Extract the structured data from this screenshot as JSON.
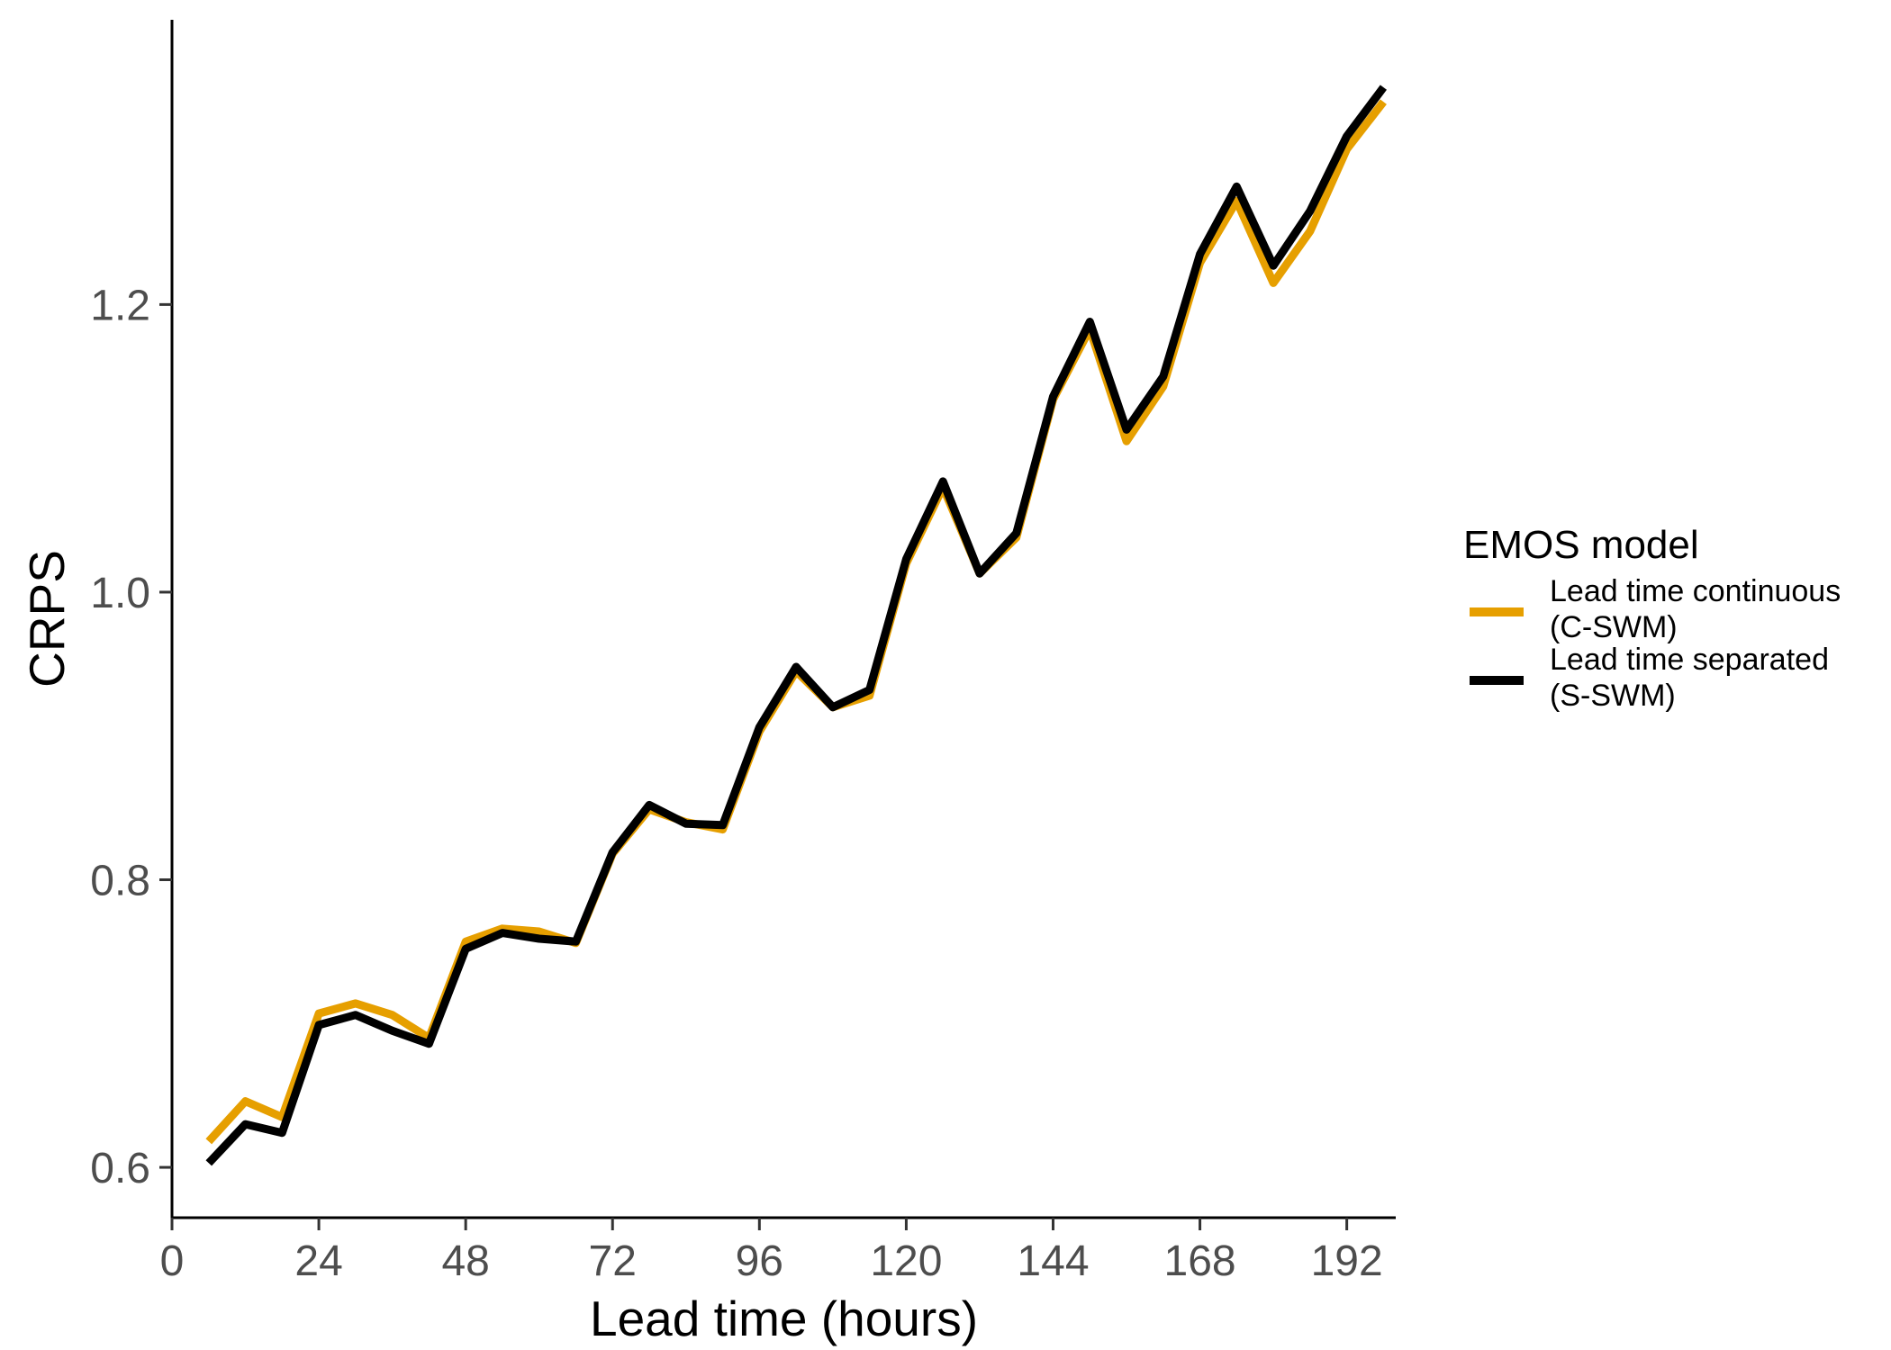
{
  "chart_data": {
    "type": "line",
    "title": "",
    "xlabel": "Lead time (hours)",
    "ylabel": "CRPS",
    "xlim": [
      0,
      200
    ],
    "ylim": [
      0.565,
      1.398
    ],
    "x_ticks": [
      0,
      24,
      48,
      72,
      96,
      120,
      144,
      168,
      192
    ],
    "y_ticks": [
      0.6,
      0.8,
      1.0,
      1.2
    ],
    "y_tick_labels": [
      "0.6",
      "0.8",
      "1.0",
      "1.2"
    ],
    "grid": false,
    "legend": {
      "title": "EMOS model",
      "position": "right"
    },
    "x": [
      6,
      12,
      18,
      24,
      30,
      36,
      42,
      48,
      54,
      60,
      66,
      72,
      78,
      84,
      90,
      96,
      102,
      108,
      114,
      120,
      126,
      132,
      138,
      144,
      150,
      156,
      162,
      168,
      174,
      180,
      186,
      192,
      198
    ],
    "series": [
      {
        "name": "Lead time continuous (C-SWM)",
        "label_lines": [
          "Lead time continuous",
          "(C-SWM)"
        ],
        "color": "#E69F00",
        "values": [
          0.618,
          0.646,
          0.635,
          0.707,
          0.714,
          0.706,
          0.69,
          0.757,
          0.766,
          0.764,
          0.756,
          0.818,
          0.849,
          0.84,
          0.835,
          0.903,
          0.945,
          0.92,
          0.928,
          1.02,
          1.073,
          1.013,
          1.038,
          1.134,
          1.183,
          1.105,
          1.143,
          1.229,
          1.272,
          1.215,
          1.251,
          1.308,
          1.341
        ]
      },
      {
        "name": "Lead time separated (S-SWM)",
        "label_lines": [
          "Lead time separated",
          "(S-SWM)"
        ],
        "color": "#000000",
        "values": [
          0.603,
          0.63,
          0.624,
          0.699,
          0.706,
          0.695,
          0.686,
          0.752,
          0.763,
          0.759,
          0.757,
          0.819,
          0.852,
          0.839,
          0.838,
          0.906,
          0.948,
          0.92,
          0.932,
          1.023,
          1.077,
          1.013,
          1.041,
          1.136,
          1.188,
          1.113,
          1.15,
          1.235,
          1.282,
          1.227,
          1.265,
          1.317,
          1.351
        ]
      }
    ]
  }
}
